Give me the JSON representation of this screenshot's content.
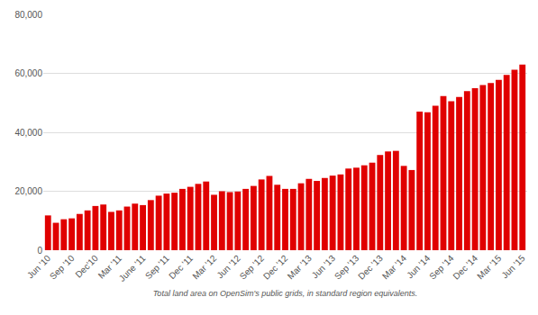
{
  "chart_data": {
    "type": "bar",
    "xlabel": "Total land area on OpenSim's public grids, in standard region equivalents.",
    "categories": [
      "Jun '10",
      null,
      null,
      "Sep '10",
      null,
      null,
      "Dec'10",
      null,
      null,
      "Mar '11",
      null,
      null,
      "June '11",
      null,
      null,
      "Sep '11",
      null,
      null,
      "Dec '11",
      null,
      null,
      "Mar '12",
      null,
      null,
      "Jun '12",
      null,
      null,
      "Sep '12",
      null,
      null,
      "Dec '12",
      null,
      null,
      "Mar '13",
      null,
      null,
      "Jun '13",
      null,
      null,
      "Sep '13",
      null,
      null,
      "Dec '13",
      null,
      null,
      "Mar '14",
      null,
      null,
      "Jun '14",
      null,
      null,
      "Sep '14",
      null,
      null,
      "Dec '14",
      null,
      null,
      "Mar '15",
      null,
      null,
      "Jun '15"
    ],
    "values": [
      11800,
      9300,
      10500,
      10800,
      12300,
      13500,
      15000,
      15500,
      13000,
      13500,
      14800,
      15800,
      15300,
      17000,
      18500,
      19200,
      19500,
      20800,
      21500,
      22500,
      23300,
      18800,
      20000,
      19700,
      19900,
      20800,
      21800,
      24000,
      25200,
      22200,
      20800,
      20800,
      22700,
      24200,
      23500,
      24500,
      25300,
      25700,
      27700,
      28000,
      28800,
      29700,
      32300,
      33500,
      33700,
      28600,
      27200,
      47000,
      46800,
      49000,
      52300,
      50500,
      52000,
      54000,
      55000,
      56000,
      56700,
      57800,
      59500,
      61200,
      63000
    ],
    "color": "#e00000",
    "ylim": [
      0,
      80000
    ],
    "yticks": [
      0,
      {
        "value": 20000,
        "label": "20,000"
      },
      {
        "value": 40000,
        "label": "40,000"
      },
      {
        "value": 60000,
        "label": "60,000"
      },
      {
        "value": 80000,
        "label": "80,000"
      }
    ],
    "grid": true
  }
}
